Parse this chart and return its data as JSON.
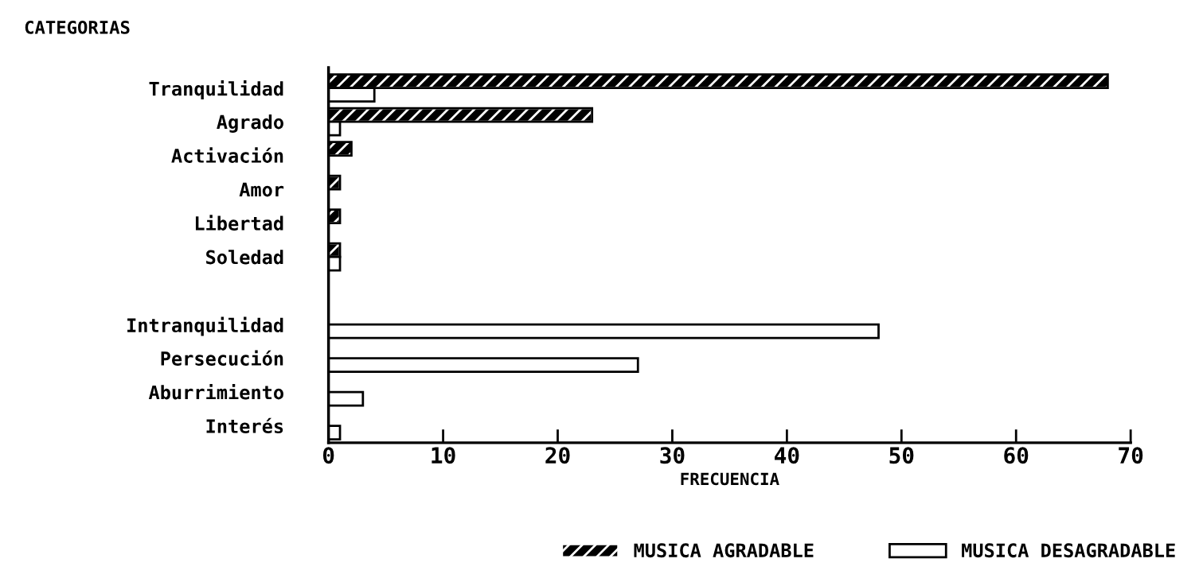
{
  "chart_data": {
    "type": "bar",
    "orientation": "horizontal",
    "ylabel": "CATEGORIAS",
    "xlabel": "FRECUENCIA",
    "categories": [
      "Tranquilidad",
      "Agrado",
      "Activación",
      "Amor",
      "Libertad",
      "Soledad",
      null,
      "Intranquilidad",
      "Persecución",
      "Aburrimiento",
      "Interés"
    ],
    "series": [
      {
        "name": "MUSICA AGRADABLE",
        "color": "#000000",
        "values": [
          68,
          23,
          2,
          1,
          1,
          1,
          null,
          0,
          0,
          0,
          0
        ]
      },
      {
        "name": "MUSICA DESAGRADABLE",
        "color": "#ffffff",
        "values": [
          4,
          1,
          0,
          0,
          0,
          1,
          null,
          48,
          27,
          3,
          1
        ]
      }
    ],
    "xlim": [
      0,
      70
    ],
    "xticks": [
      0,
      10,
      20,
      30,
      40,
      50,
      60,
      70
    ],
    "grid": false,
    "legend": "bottom"
  }
}
